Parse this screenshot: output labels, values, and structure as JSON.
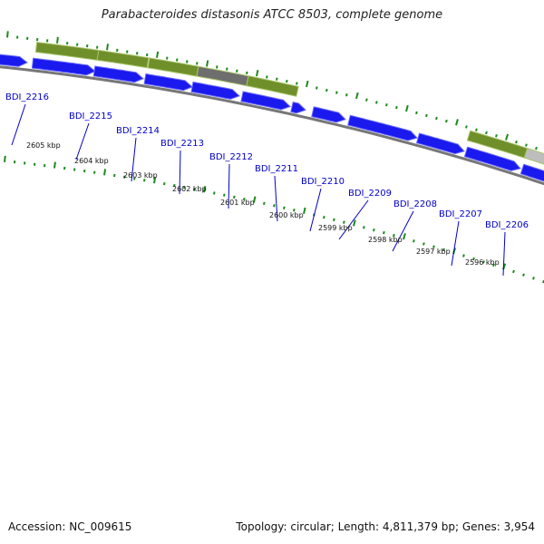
{
  "title": "Parabacteroides distasonis ATCC 8503, complete genome",
  "footer": {
    "accession": "Accession: NC_009615",
    "summary": "Topology: circular; Length: 4,811,379 bp; Genes: 3,954"
  },
  "colors": {
    "forward_gene": "#1a1aee",
    "forward_gene_light": "#6a6aff",
    "reverse_gene_olive": "#6f8f2a",
    "reverse_gene_olive_light": "#a9c46a",
    "grey_gene": "#6e6e6e",
    "light_grey_gene": "#bdbdbd",
    "backbone": "#777777",
    "tick_green": "#1d8a1d",
    "gene_label": "#0000c8",
    "kbp_label": "#111111"
  },
  "gene_labels": [
    "BDI_2216",
    "BDI_2215",
    "BDI_2214",
    "BDI_2213",
    "BDI_2212",
    "BDI_2211",
    "BDI_2210",
    "BDI_2209",
    "BDI_2208",
    "BDI_2207",
    "BDI_2206"
  ],
  "kbp_labels": [
    "2605 kbp",
    "2604 kbp",
    "2603 kbp",
    "2602 kbp",
    "2601 kbp",
    "2600 kbp",
    "2599 kbp",
    "2598 kbp",
    "2597 kbp",
    "2596 kbp"
  ]
}
